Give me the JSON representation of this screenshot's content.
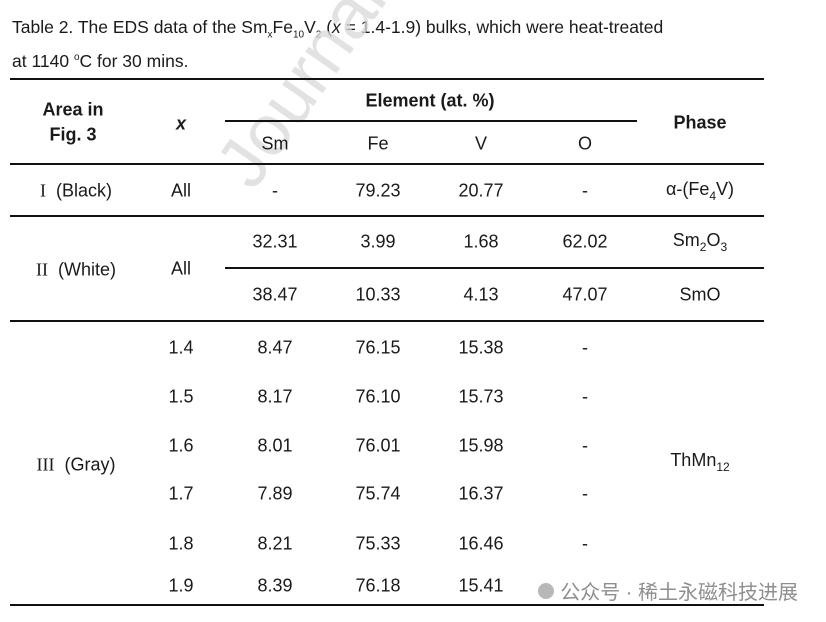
{
  "caption": {
    "p1": "Table 2. The EDS data of the Sm",
    "sub_x": "x",
    "p2": "Fe",
    "sub_10": "10",
    "p3": "V",
    "sub_2": "2",
    "p4": " (",
    "var_x": "x",
    "p5": " = 1.4-1.9) bulks, which were heat-treated",
    "p6": "at 1140 ",
    "sup_o": "o",
    "p7": "C for 30 mins."
  },
  "headers": {
    "area_line1": "Area in",
    "area_line2": "Fig. 3",
    "x": "x",
    "element": "Element (at. %)",
    "phase": "Phase",
    "sm": "Sm",
    "fe": "Fe",
    "v": "V",
    "o": "O"
  },
  "area1": {
    "numeral": "I",
    "label": "(Black)",
    "x": "All",
    "row": {
      "sm": "-",
      "fe": "79.23",
      "v": "20.77",
      "o": "-"
    },
    "phase": {
      "a": "α-(Fe",
      "sub": "4",
      "b": "V)"
    }
  },
  "area2": {
    "numeral": "II",
    "label": "(White)",
    "x": "All",
    "rows": [
      {
        "sm": "32.31",
        "fe": "3.99",
        "v": "1.68",
        "o": "62.02"
      },
      {
        "sm": "38.47",
        "fe": "10.33",
        "v": "4.13",
        "o": "47.07"
      }
    ],
    "phase1": {
      "a": "Sm",
      "sub1": "2",
      "b": "O",
      "sub2": "3"
    },
    "phase2": "SmO"
  },
  "area3": {
    "numeral": "III",
    "label": "(Gray)",
    "rows": [
      {
        "x": "1.4",
        "sm": "8.47",
        "fe": "76.15",
        "v": "15.38",
        "o": "-"
      },
      {
        "x": "1.5",
        "sm": "8.17",
        "fe": "76.10",
        "v": "15.73",
        "o": "-"
      },
      {
        "x": "1.6",
        "sm": "8.01",
        "fe": "76.01",
        "v": "15.98",
        "o": "-"
      },
      {
        "x": "1.7",
        "sm": "7.89",
        "fe": "75.74",
        "v": "16.37",
        "o": "-"
      },
      {
        "x": "1.8",
        "sm": "8.21",
        "fe": "75.33",
        "v": "16.46",
        "o": "-"
      },
      {
        "x": "1.9",
        "sm": "8.39",
        "fe": "76.18",
        "v": "15.41",
        "o": ""
      }
    ],
    "phase": {
      "a": "ThMn",
      "sub": "12"
    }
  },
  "watermarks": {
    "diagonal": "Journal Pre-p",
    "footer": "公众号 · 稀土永磁科技进展"
  }
}
